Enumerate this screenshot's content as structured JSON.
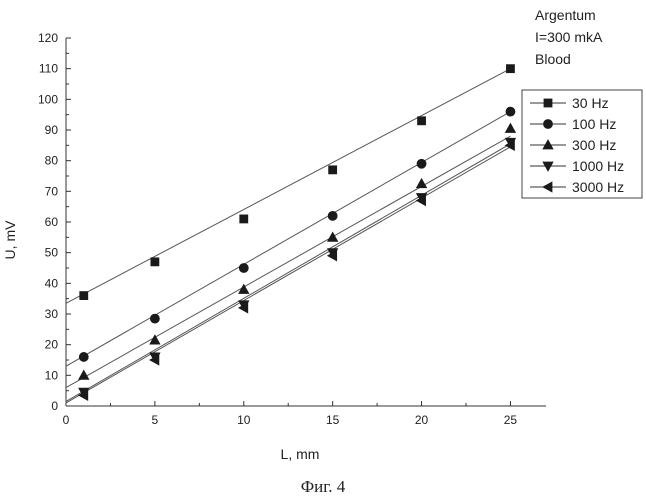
{
  "chart_data": {
    "type": "line",
    "xlabel": "L, mm",
    "ylabel": "U, mV",
    "xlim": [
      0,
      27
    ],
    "ylim": [
      0,
      120
    ],
    "xticks": [
      0,
      5,
      10,
      15,
      20,
      25
    ],
    "yticks": [
      0,
      10,
      20,
      30,
      40,
      50,
      60,
      70,
      80,
      90,
      100,
      110,
      120
    ],
    "annotation": [
      "Argentum",
      "I=300 mkA",
      "Blood"
    ],
    "caption": "Фиг. 4",
    "grid": false,
    "legend_position": "right",
    "series": [
      {
        "name": "30 Hz",
        "marker": "square",
        "x": [
          1,
          5,
          10,
          15,
          20,
          25
        ],
        "y": [
          36,
          47,
          61,
          77,
          93,
          110
        ]
      },
      {
        "name": "100 Hz",
        "marker": "circle",
        "x": [
          1,
          5,
          10,
          15,
          20,
          25
        ],
        "y": [
          16,
          28.5,
          45,
          62,
          79,
          96
        ]
      },
      {
        "name": "300 Hz",
        "marker": "triangle-up",
        "x": [
          1,
          5,
          10,
          15,
          20,
          25
        ],
        "y": [
          10,
          21.5,
          38,
          55,
          72.5,
          90.5
        ]
      },
      {
        "name": "1000 Hz",
        "marker": "triangle-down",
        "x": [
          1,
          5,
          10,
          15,
          20,
          25
        ],
        "y": [
          4.5,
          16,
          33,
          50,
          68,
          86
        ]
      },
      {
        "name": "3000 Hz",
        "marker": "triangle-left",
        "x": [
          1,
          5,
          10,
          15,
          20,
          25
        ],
        "y": [
          3.5,
          15,
          32,
          49,
          67,
          85
        ]
      }
    ],
    "fit_lines": [
      {
        "series": "30 Hz",
        "y_at_xmin": 33.5,
        "y_at_xmax": 110
      },
      {
        "series": "100 Hz",
        "y_at_xmin": 13,
        "y_at_xmax": 96
      },
      {
        "series": "300 Hz",
        "y_at_xmin": 6,
        "y_at_xmax": 88
      },
      {
        "series": "1000 Hz",
        "y_at_xmin": 1.5,
        "y_at_xmax": 85.5
      },
      {
        "series": "3000 Hz",
        "y_at_xmin": 1,
        "y_at_xmax": 84.5
      }
    ]
  }
}
